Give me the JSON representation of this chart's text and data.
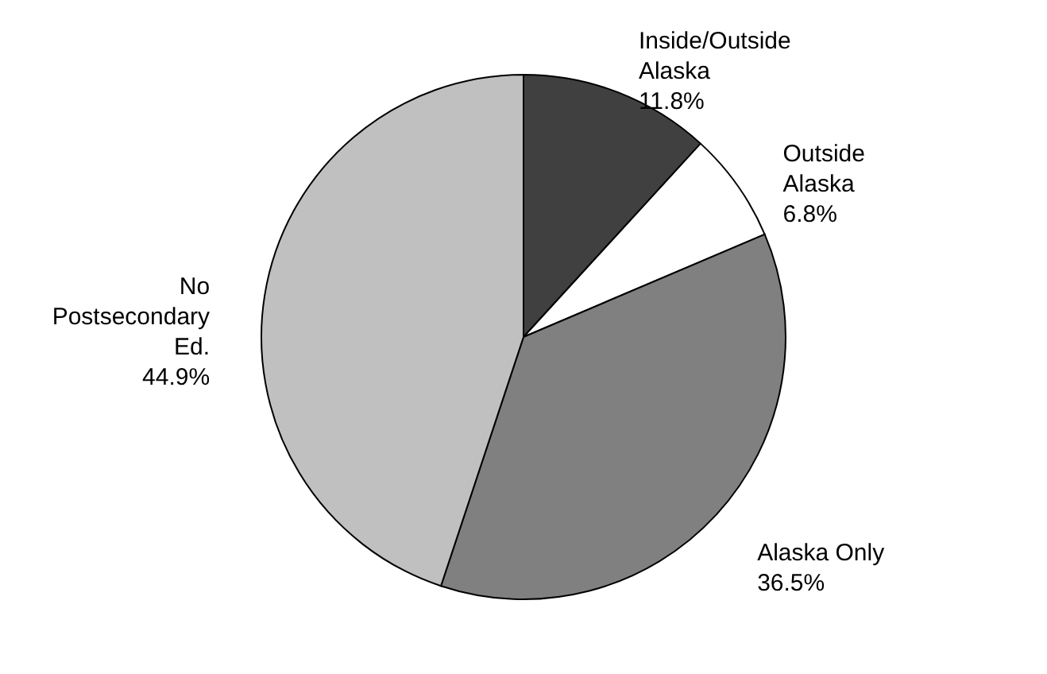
{
  "chart_data": {
    "type": "pie",
    "categories": [
      "Inside/Outside Alaska",
      "Outside Alaska",
      "Alaska Only",
      "No Postsecondary Ed."
    ],
    "values": [
      11.8,
      6.8,
      36.5,
      44.9
    ],
    "colors": [
      "#404040",
      "#ffffff",
      "#808080",
      "#c0c0c0"
    ],
    "value_labels": [
      "11.8%",
      "6.8%",
      "36.5%",
      "44.9%"
    ],
    "legend": false
  }
}
